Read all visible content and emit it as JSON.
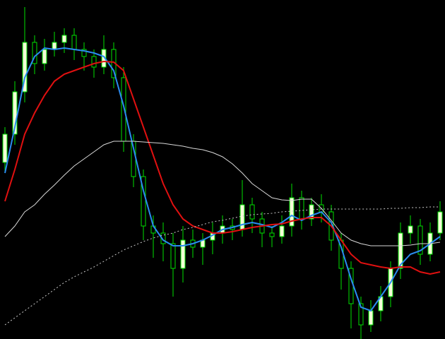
{
  "chart_data": {
    "type": "candlestick",
    "categories": [
      null,
      null,
      null,
      null,
      null,
      null,
      null,
      null,
      null,
      null,
      null,
      null,
      null,
      null,
      null,
      null,
      null,
      null,
      null,
      null,
      null,
      null,
      null,
      null,
      null,
      null,
      null,
      null,
      null,
      null,
      null,
      null,
      null,
      null,
      null,
      null,
      null,
      null,
      null,
      null,
      null,
      null,
      null,
      null,
      null
    ],
    "open": [
      250,
      290,
      350,
      420,
      390,
      410,
      420,
      430,
      410,
      400,
      385,
      410,
      370,
      280,
      230,
      160,
      150,
      135,
      100,
      140,
      130,
      140,
      150,
      160,
      155,
      190,
      170,
      150,
      145,
      160,
      200,
      170,
      190,
      180,
      140,
      100,
      50,
      20,
      40,
      60,
      100,
      150,
      160,
      120,
      150
    ],
    "high": [
      300,
      365,
      470,
      430,
      425,
      435,
      440,
      440,
      420,
      410,
      430,
      420,
      385,
      290,
      240,
      175,
      165,
      150,
      160,
      155,
      150,
      165,
      175,
      170,
      225,
      200,
      180,
      160,
      175,
      220,
      210,
      200,
      205,
      190,
      150,
      110,
      60,
      55,
      75,
      110,
      165,
      175,
      170,
      165,
      195
    ],
    "low": [
      235,
      275,
      335,
      375,
      380,
      400,
      405,
      395,
      380,
      370,
      375,
      355,
      265,
      215,
      140,
      115,
      110,
      60,
      80,
      115,
      105,
      120,
      135,
      140,
      145,
      150,
      130,
      130,
      135,
      145,
      155,
      160,
      165,
      125,
      70,
      15,
      0,
      10,
      25,
      45,
      85,
      135,
      105,
      110,
      140
    ],
    "close": [
      290,
      350,
      420,
      390,
      410,
      420,
      430,
      410,
      400,
      385,
      410,
      370,
      280,
      230,
      160,
      150,
      135,
      100,
      140,
      130,
      140,
      150,
      160,
      155,
      190,
      170,
      150,
      145,
      160,
      200,
      170,
      190,
      180,
      140,
      100,
      50,
      20,
      40,
      60,
      100,
      150,
      160,
      120,
      150,
      180
    ],
    "up_color": "#f4ffd8",
    "down_color": "#000000",
    "wick_color": "#00e000",
    "lines": [
      {
        "color": "#2a8cf0",
        "dash": false,
        "values": [
          235,
          300,
          370,
          400,
          412,
          410,
          412,
          410,
          408,
          405,
          400,
          380,
          330,
          270,
          210,
          160,
          140,
          132,
          132,
          135,
          140,
          147,
          155,
          158,
          162,
          165,
          162,
          158,
          165,
          175,
          168,
          175,
          180,
          165,
          130,
          85,
          45,
          40,
          60,
          80,
          105,
          120,
          125,
          135,
          145
        ]
      },
      {
        "color": "#e01010",
        "dash": false,
        "values": [
          195,
          240,
          290,
          320,
          345,
          365,
          375,
          380,
          385,
          390,
          393,
          392,
          380,
          340,
          300,
          260,
          220,
          190,
          170,
          160,
          155,
          150,
          150,
          152,
          155,
          158,
          160,
          162,
          163,
          167,
          170,
          172,
          172,
          160,
          140,
          120,
          108,
          105,
          102,
          100,
          102,
          102,
          95,
          92,
          95
        ]
      },
      {
        "color": "#d8d8d8",
        "dash": false,
        "values": [
          145,
          160,
          180,
          190,
          205,
          218,
          232,
          245,
          255,
          265,
          275,
          280,
          280,
          280,
          279,
          278,
          277,
          275,
          273,
          270,
          268,
          264,
          258,
          248,
          235,
          220,
          210,
          200,
          197,
          196,
          198,
          198,
          185,
          168,
          150,
          140,
          135,
          132,
          132,
          132,
          132,
          133,
          135,
          135,
          137
        ]
      },
      {
        "color": "#c8c8c8",
        "dash": true,
        "values": [
          20,
          30,
          40,
          50,
          60,
          70,
          80,
          88,
          95,
          102,
          110,
          118,
          126,
          132,
          138,
          143,
          147,
          150,
          155,
          158,
          162,
          166,
          168,
          171,
          174,
          176,
          177,
          178,
          180,
          181,
          182,
          183,
          184,
          184,
          184,
          184,
          184,
          184,
          184,
          185,
          185,
          186,
          186,
          187,
          187
        ]
      }
    ],
    "ylim": [
      0,
      480
    ]
  }
}
